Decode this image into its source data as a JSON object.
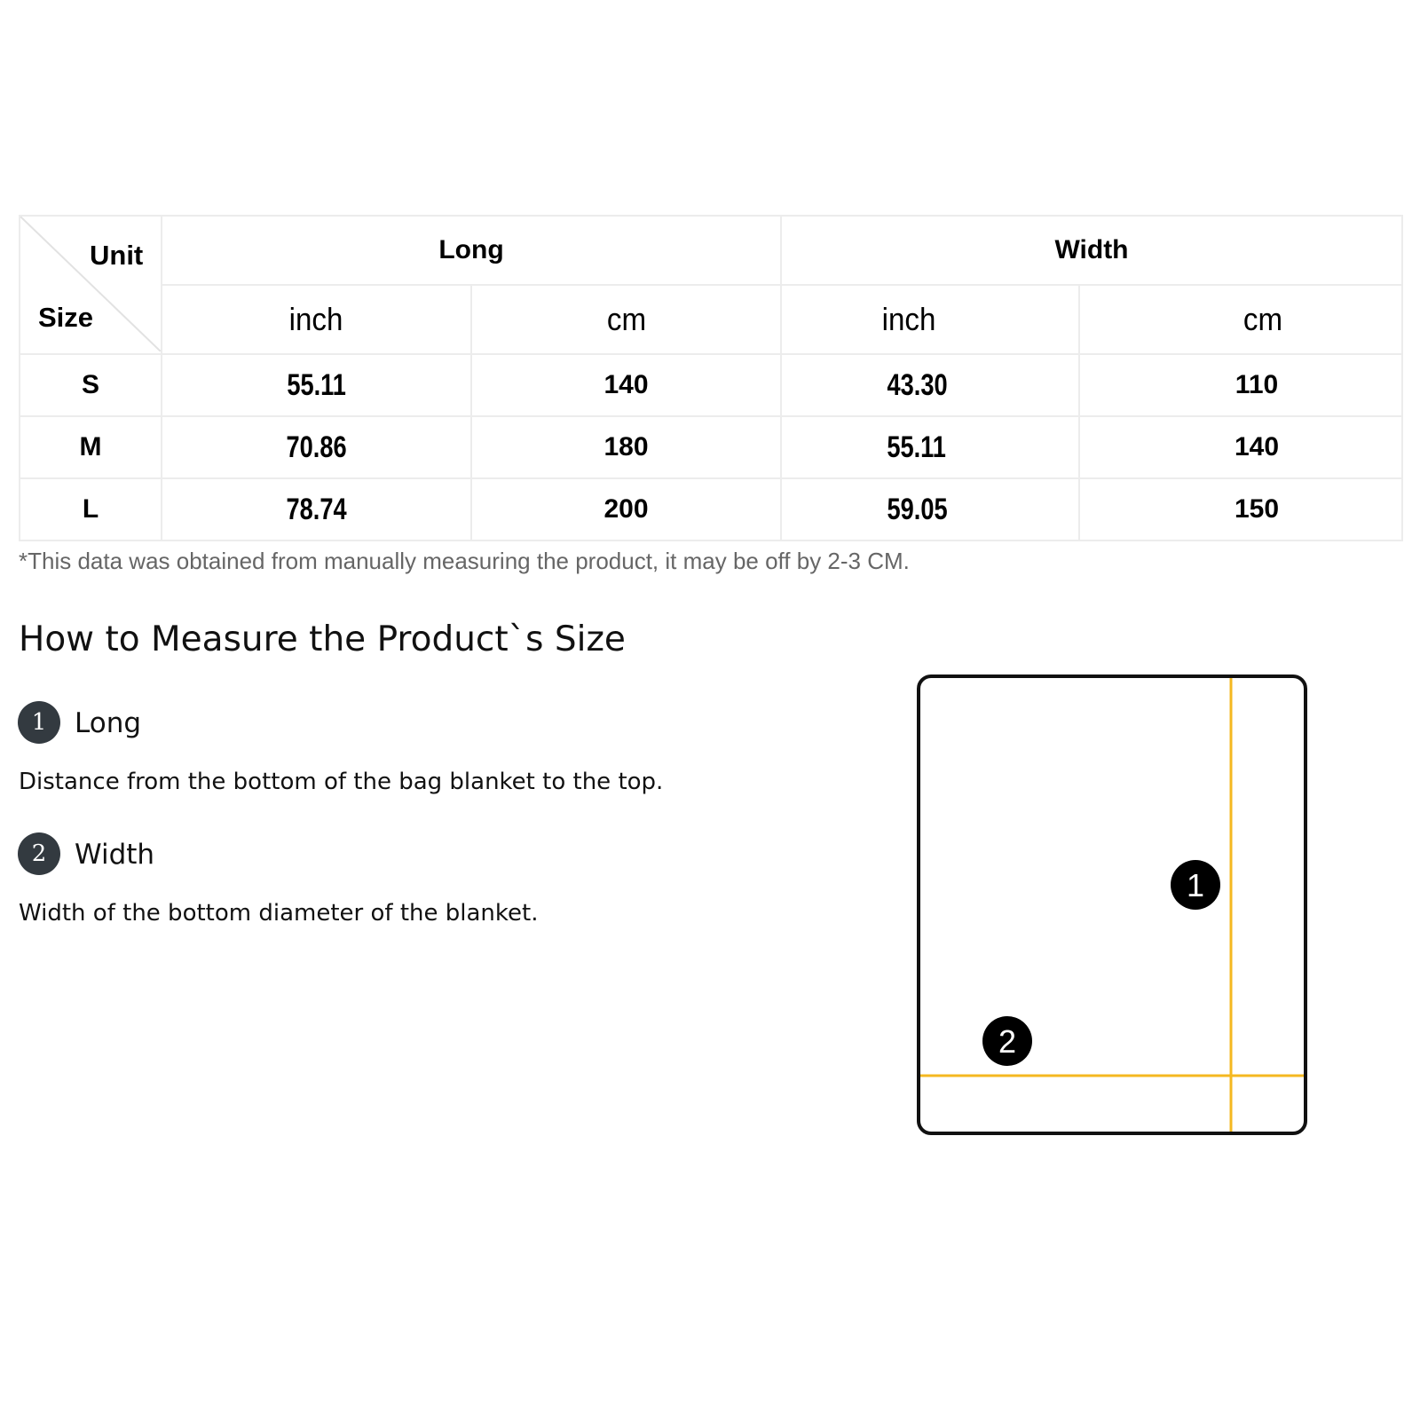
{
  "table": {
    "corner": {
      "unit": "Unit",
      "size": "Size"
    },
    "groups": [
      "Long",
      "Width"
    ],
    "units": [
      "inch",
      "cm",
      "inch",
      "cm"
    ],
    "rows": [
      {
        "size": "S",
        "long_inch": "55.11",
        "long_cm": "140",
        "width_inch": "43.30",
        "width_cm": "110"
      },
      {
        "size": "M",
        "long_inch": "70.86",
        "long_cm": "180",
        "width_inch": "55.11",
        "width_cm": "140"
      },
      {
        "size": "L",
        "long_inch": "78.74",
        "long_cm": "200",
        "width_inch": "59.05",
        "width_cm": "150"
      }
    ]
  },
  "note": "*This data was obtained from manually measuring the product, it may be off by 2-3 CM.",
  "guide": {
    "title": "How to Measure the Product`s Size",
    "items": [
      {
        "number": "1",
        "title": "Long",
        "description": "Distance from the bottom of the bag blanket to the top."
      },
      {
        "number": "2",
        "title": "Width",
        "description": "Width of the bottom diameter of the blanket."
      }
    ]
  },
  "diagram": {
    "markers": [
      "1",
      "2"
    ],
    "line_color": "#f5b820",
    "outline_color": "#111111"
  }
}
